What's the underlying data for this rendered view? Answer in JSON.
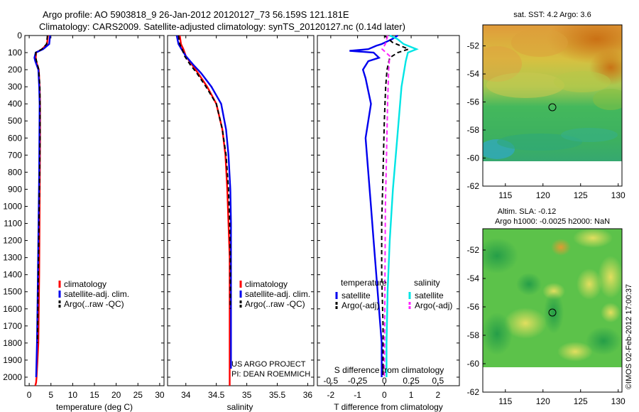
{
  "title_line1": "Argo profile: AO 5903818_9 26-Jan-2012 20120127_73 56.159S 121.181E",
  "title_line2": "Climatology: CARS2009. Satellite-adjusted climatology: synTS_20120127.nc (0.14d later)",
  "credit": "©IMOS 02-Feb-2012 17:00:37",
  "colors": {
    "climatology": "#ff0000",
    "satellite": "#0000ee",
    "argo": "#000000",
    "sat_salinity": "#00e5e5",
    "argo_salinity": "#ff22ff"
  },
  "chart_data": [
    {
      "type": "line",
      "name": "temperature-profile",
      "xlabel": "temperature (deg C)",
      "ylabel": "",
      "xlim": [
        -1,
        31
      ],
      "ylim": [
        2050,
        0
      ],
      "xticks": [
        "0",
        "5",
        "10",
        "15",
        "20",
        "25",
        "30"
      ],
      "xtick_values": [
        0,
        5,
        10,
        15,
        20,
        25,
        30
      ],
      "yticks": [
        "0",
        "100",
        "200",
        "300",
        "400",
        "500",
        "600",
        "700",
        "800",
        "900",
        "1000",
        "1100",
        "1200",
        "1300",
        "1400",
        "1500",
        "1600",
        "1700",
        "1800",
        "1900",
        "2000"
      ],
      "ytick_values": [
        0,
        100,
        200,
        300,
        400,
        500,
        600,
        700,
        800,
        900,
        1000,
        1100,
        1200,
        1300,
        1400,
        1500,
        1600,
        1700,
        1800,
        1900,
        2000
      ],
      "legend": [
        "climatology",
        "satellite-adj. clim.",
        "Argo(..raw -QC)"
      ],
      "series": [
        {
          "name": "climatology",
          "color": "#ff0000",
          "dash": false,
          "x": [
            4.3,
            4.1,
            3.0,
            1.6,
            1.5,
            1.6,
            2.2,
            2.4,
            2.5,
            2.5,
            2.45,
            2.4,
            2.35,
            2.3,
            2.2,
            2.1,
            1.9,
            1.7,
            1.6,
            1.4
          ],
          "y": [
            0,
            50,
            80,
            100,
            130,
            150,
            200,
            300,
            400,
            600,
            800,
            1000,
            1200,
            1400,
            1600,
            1800,
            1900,
            2000,
            2030,
            2050
          ]
        },
        {
          "name": "satellite-adj. clim.",
          "color": "#0000ee",
          "dash": false,
          "x": [
            4.8,
            4.6,
            3.2,
            1.5,
            1.2,
            1.4,
            2.1,
            2.3,
            2.4,
            2.35,
            2.3,
            2.2,
            2.1,
            2.0,
            1.9,
            1.8,
            1.7,
            1.6
          ],
          "y": [
            0,
            50,
            80,
            100,
            130,
            150,
            200,
            300,
            400,
            600,
            800,
            1000,
            1200,
            1400,
            1600,
            1800,
            1900,
            2000
          ]
        },
        {
          "name": "Argo(..raw -QC)",
          "color": "#000000",
          "dash": true,
          "x": [
            4.2,
            4.0,
            2.9,
            1.5,
            1.5,
            1.7,
            2.2,
            2.45,
            2.5,
            2.5,
            2.4,
            2.3,
            2.2,
            2.1,
            2.0,
            1.9
          ],
          "y": [
            0,
            50,
            80,
            100,
            130,
            150,
            200,
            300,
            400,
            600,
            800,
            1000,
            1200,
            1400,
            1600,
            1800
          ]
        }
      ]
    },
    {
      "type": "line",
      "name": "salinity-profile",
      "xlabel": "salinity",
      "ylabel": "",
      "xlim": [
        33.7,
        36.1
      ],
      "ylim": [
        2050,
        0
      ],
      "xticks": [
        "34",
        "34.5",
        "35",
        "35.5",
        "36"
      ],
      "xtick_values": [
        34,
        34.5,
        35,
        35.5,
        36
      ],
      "legend": [
        "climatology",
        "satellite-adj. clim.",
        "Argo(..raw -QC)"
      ],
      "annotations": [
        "US ARGO PROJECT",
        "PI: DEAN ROEMMICH"
      ],
      "series": [
        {
          "name": "climatology",
          "color": "#ff0000",
          "dash": false,
          "x": [
            33.9,
            33.92,
            33.96,
            34.0,
            34.1,
            34.2,
            34.35,
            34.5,
            34.6,
            34.65,
            34.68,
            34.7,
            34.72,
            34.72,
            34.72,
            34.72
          ],
          "y": [
            0,
            50,
            80,
            120,
            170,
            220,
            300,
            400,
            550,
            700,
            900,
            1100,
            1300,
            1600,
            1900,
            2050
          ]
        },
        {
          "name": "satellite-adj. clim.",
          "color": "#0000ee",
          "dash": false,
          "x": [
            33.85,
            33.88,
            33.93,
            34.0,
            34.12,
            34.25,
            34.42,
            34.58,
            34.66,
            34.7,
            34.73,
            34.74,
            34.74,
            34.74,
            34.74,
            34.74
          ],
          "y": [
            0,
            50,
            80,
            120,
            170,
            220,
            300,
            400,
            550,
            700,
            900,
            1100,
            1300,
            1600,
            1900,
            1950
          ]
        },
        {
          "name": "Argo(..raw -QC)",
          "color": "#000000",
          "dash": true,
          "x": [
            33.88,
            33.9,
            33.94,
            33.98,
            34.07,
            34.18,
            34.33,
            34.5,
            34.6,
            34.66,
            34.7,
            34.72,
            34.73,
            34.73
          ],
          "y": [
            0,
            50,
            80,
            120,
            170,
            220,
            300,
            400,
            550,
            700,
            900,
            1100,
            1300,
            1600
          ]
        }
      ]
    },
    {
      "type": "line",
      "name": "difference-from-climatology",
      "xlabel": "T difference from climatology",
      "x2label": "S difference from climatology",
      "xlim": [
        -2.5,
        2.8
      ],
      "x2lim": [
        -0.625,
        0.7
      ],
      "ylim": [
        2050,
        0
      ],
      "xticks": [
        "-2",
        "-1",
        "0",
        "1",
        "2"
      ],
      "xtick_values": [
        -2,
        -1,
        0,
        1,
        2
      ],
      "x2ticks": [
        "-0.5",
        "-0.25",
        "0",
        "0.25",
        "0.5"
      ],
      "x2tick_values": [
        -0.5,
        -0.25,
        0,
        0.25,
        0.5
      ],
      "legend_groups": [
        "temperature",
        "salinity"
      ],
      "legend": [
        "satellite",
        "Argo(-adj)",
        "satellite",
        "Argo(-adj)"
      ],
      "series": [
        {
          "name": "temperature satellite",
          "color": "#0000ee",
          "dash": false,
          "axis": "T",
          "x": [
            0.5,
            0.3,
            -0.1,
            -0.3,
            -0.6,
            -1.3,
            -0.4,
            -0.2,
            -0.6,
            -0.8,
            -0.7,
            -0.5,
            -0.7,
            -0.6,
            -0.5,
            -0.4,
            -0.3,
            -0.2,
            -0.1,
            -0.1
          ],
          "y": [
            0,
            20,
            50,
            60,
            80,
            90,
            100,
            130,
            150,
            200,
            250,
            400,
            600,
            800,
            1000,
            1200,
            1400,
            1600,
            1800,
            2000
          ]
        },
        {
          "name": "temperature Argo(-adj)",
          "color": "#000000",
          "dash": true,
          "axis": "T",
          "x": [
            0.0,
            0.3,
            0.6,
            0.9,
            0.5,
            0.2,
            0.1,
            0.05,
            0.0,
            -0.05,
            -0.1,
            -0.1,
            -0.05,
            -0.05
          ],
          "y": [
            0,
            40,
            60,
            80,
            100,
            130,
            200,
            300,
            500,
            800,
            1100,
            1400,
            1700,
            2000
          ]
        },
        {
          "name": "salinity satellite",
          "color": "#00e5e5",
          "dash": false,
          "axis": "S",
          "x": [
            0.05,
            0.12,
            0.18,
            0.3,
            0.22,
            0.2,
            0.16,
            0.12,
            0.08,
            0.05,
            0.03,
            0.02,
            0.02
          ],
          "y": [
            0,
            20,
            50,
            80,
            100,
            150,
            300,
            600,
            900,
            1200,
            1500,
            1800,
            2000
          ]
        },
        {
          "name": "salinity Argo(-adj)",
          "color": "#ff22ff",
          "dash": true,
          "axis": "S",
          "x": [
            0.03,
            0.01,
            -0.02,
            0.05,
            0.04,
            0.03,
            0.02,
            0.01,
            0.005,
            0.0
          ],
          "y": [
            0,
            50,
            80,
            120,
            200,
            400,
            700,
            1000,
            1500,
            2000
          ]
        }
      ]
    },
    {
      "type": "heatmap",
      "name": "sst-map",
      "title": "sat. SST: 4.2 Argo: 3.6",
      "xlim": [
        112,
        130.5
      ],
      "ylim": [
        -62,
        -50.5
      ],
      "xticks": [
        "115",
        "120",
        "125",
        "130"
      ],
      "xtick_values": [
        115,
        120,
        125,
        130
      ],
      "yticks": [
        "-52",
        "-54",
        "-56",
        "-58",
        "-60",
        "-62"
      ],
      "ytick_values": [
        -52,
        -54,
        -56,
        -58,
        -60,
        -62
      ],
      "marker": {
        "lon": 121.18,
        "lat": -56.16
      },
      "data_extent_lat": [
        -60,
        -50.5
      ]
    },
    {
      "type": "heatmap",
      "name": "sla-map",
      "title": "Altim. SLA: -0.12",
      "subtitle": "Argo h1000: -0.0025 h2000: NaN",
      "xlim": [
        112,
        130.5
      ],
      "ylim": [
        -62,
        -50.5
      ],
      "xticks": [
        "115",
        "120",
        "125",
        "130"
      ],
      "xtick_values": [
        115,
        120,
        125,
        130
      ],
      "yticks": [
        "-52",
        "-54",
        "-56",
        "-58",
        "-60",
        "-62"
      ],
      "ytick_values": [
        -52,
        -54,
        -56,
        -58,
        -60,
        -62
      ],
      "marker": {
        "lon": 121.18,
        "lat": -56.16
      },
      "data_extent_lat": [
        -60,
        -50.5
      ]
    }
  ]
}
